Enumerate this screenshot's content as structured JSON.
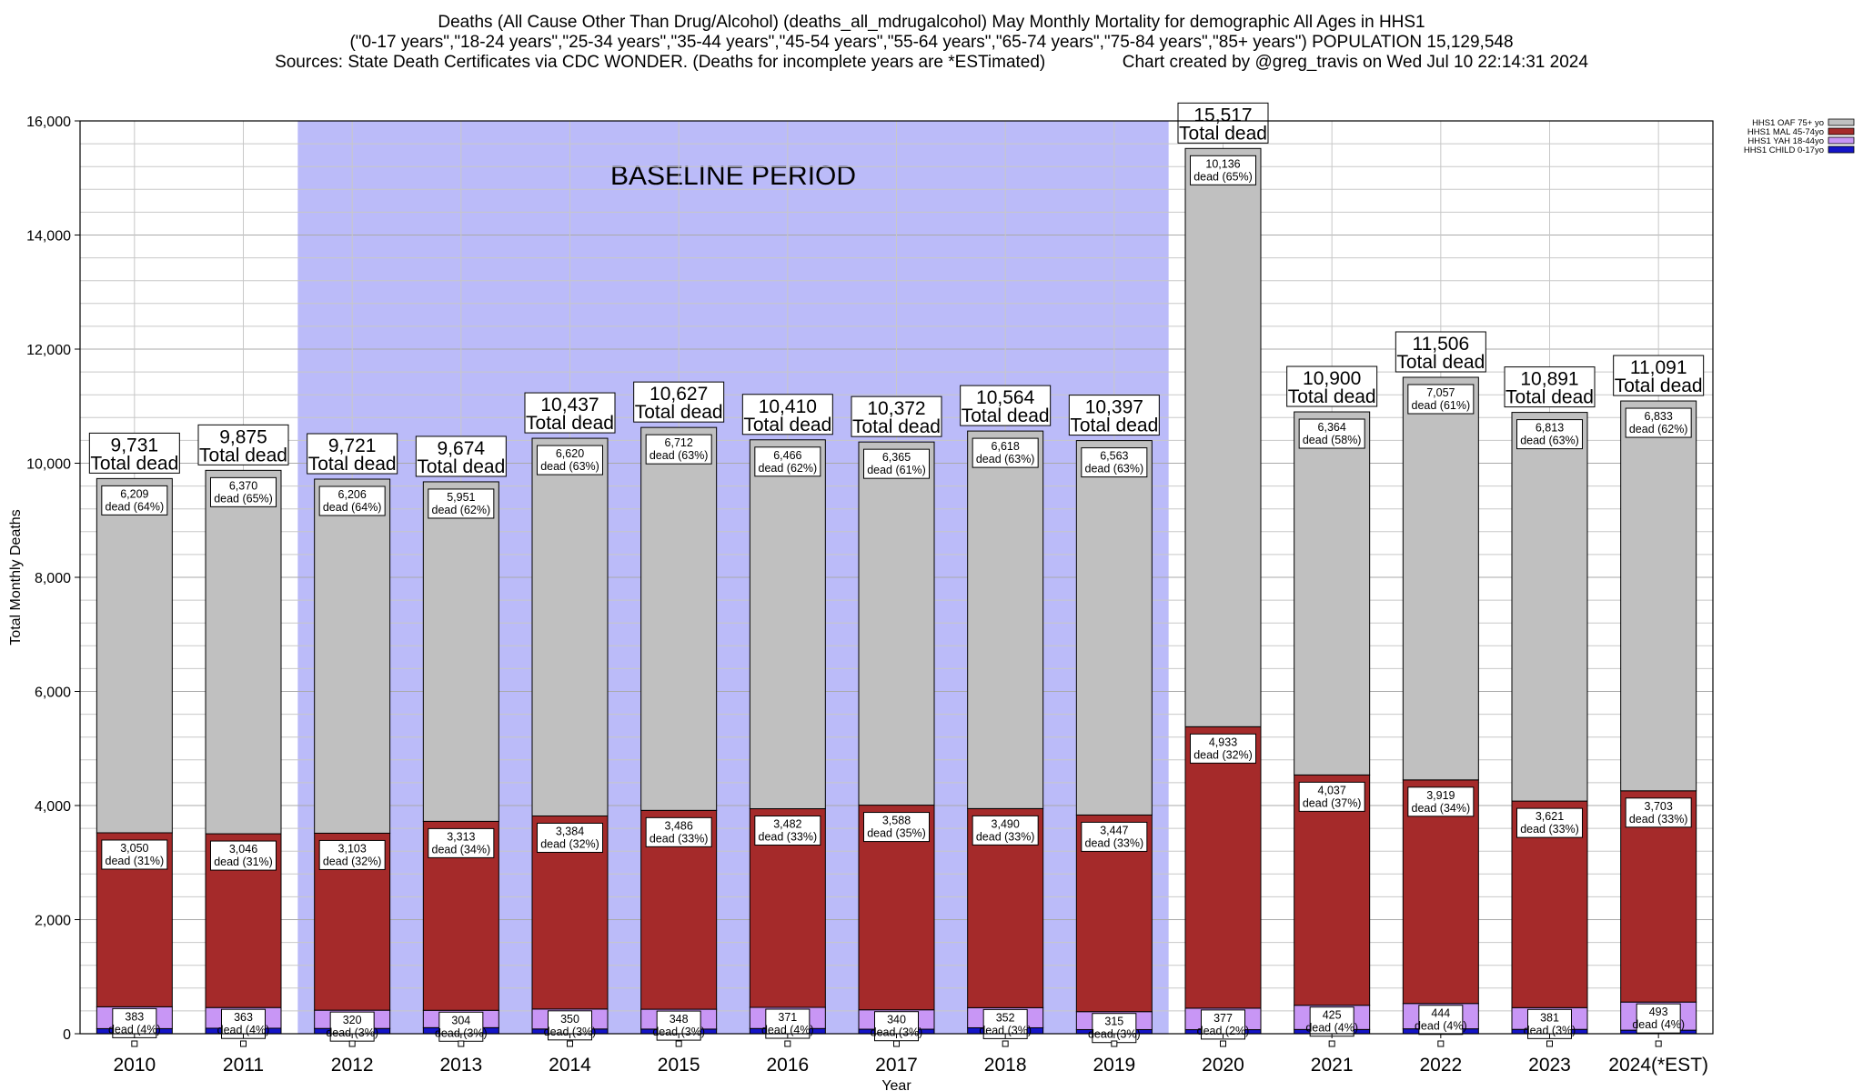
{
  "header": {
    "line1": "Deaths (All Cause Other Than Drug/Alcohol) (deaths_all_mdrugalcohol) May Monthly Mortality for demographic All Ages in HHS1",
    "line2": "(\"0-17 years\",\"18-24 years\",\"25-34 years\",\"35-44 years\",\"45-54 years\",\"55-64 years\",\"65-74 years\",\"75-84 years\",\"85+ years\") POPULATION 15,129,548",
    "line3": "Sources: State Death Certificates via CDC WONDER. (Deaths for incomplete years are *ESTimated)                Chart created by @greg_travis on Wed Jul 10 22:14:31 2024"
  },
  "chart_data": {
    "type": "bar",
    "stacked": true,
    "title": "Deaths (All Cause Other Than Drug/Alcohol) (deaths_all_mdrugalcohol) May Monthly Mortality for demographic All Ages in HHS1",
    "xlabel": "Year",
    "ylabel": "Total Monthly Deaths",
    "ylim": [
      0,
      16000
    ],
    "yticks": [
      0,
      2000,
      4000,
      6000,
      8000,
      10000,
      12000,
      14000,
      16000
    ],
    "ytick_labels": [
      "0",
      "2,000",
      "4,000",
      "6,000",
      "8,000",
      "10,000",
      "12,000",
      "14,000",
      "16,000"
    ],
    "grid": true,
    "legend_position": "top-right",
    "categories": [
      "2010",
      "2011",
      "2012",
      "2013",
      "2014",
      "2015",
      "2016",
      "2017",
      "2018",
      "2019",
      "2020",
      "2021",
      "2022",
      "2023",
      "2024(*EST)"
    ],
    "baseline_period": {
      "label": "BASELINE PERIOD",
      "from": "2012",
      "to": "2019",
      "color": "#bbbbf9"
    },
    "total_suffix": "Total dead",
    "totals": [
      9731,
      9875,
      9721,
      9674,
      10437,
      10627,
      10410,
      10372,
      10564,
      10397,
      15517,
      10900,
      11506,
      10891,
      11091
    ],
    "total_labels": [
      "9,731",
      "9,875",
      "9,721",
      "9,674",
      "10,437",
      "10,627",
      "10,410",
      "10,372",
      "10,564",
      "10,397",
      "15,517",
      "10,900",
      "11,506",
      "10,891",
      "11,091"
    ],
    "series": [
      {
        "name": "HHS1 CHILD 0-17yo",
        "color": "#1414c8",
        "values": [
          89,
          96,
          92,
          106,
          83,
          81,
          91,
          79,
          104,
          72,
          71,
          74,
          86,
          76,
          62
        ],
        "labels": [],
        "label_texts": []
      },
      {
        "name": "HHS1 YAH 18-44yo",
        "color": "#c896f5",
        "values": [
          383,
          363,
          320,
          304,
          350,
          348,
          371,
          340,
          352,
          315,
          377,
          425,
          444,
          381,
          493
        ],
        "labels": [
          "383",
          "363",
          "320",
          "304",
          "350",
          "348",
          "371",
          "340",
          "352",
          "315",
          "377",
          "425",
          "444",
          "381",
          "493"
        ],
        "label_texts": [
          "dead (4%)",
          "dead (4%)",
          "dead (3%)",
          "dead (3%)",
          "dead (3%)",
          "dead (3%)",
          "dead (4%)",
          "dead (3%)",
          "dead (3%)",
          "dead (3%)",
          "dead (2%)",
          "dead (4%)",
          "dead (4%)",
          "dead (3%)",
          "dead (4%)"
        ]
      },
      {
        "name": "HHS1 MAL 45-74yo",
        "color": "#a52a2a",
        "values": [
          3050,
          3046,
          3103,
          3313,
          3384,
          3486,
          3482,
          3588,
          3490,
          3447,
          4933,
          4037,
          3919,
          3621,
          3703
        ],
        "labels": [
          "3,050",
          "3,046",
          "3,103",
          "3,313",
          "3,384",
          "3,486",
          "3,482",
          "3,588",
          "3,490",
          "3,447",
          "4,933",
          "4,037",
          "3,919",
          "3,621",
          "3,703"
        ],
        "label_texts": [
          "dead (31%)",
          "dead (31%)",
          "dead (32%)",
          "dead (34%)",
          "dead (32%)",
          "dead (33%)",
          "dead (33%)",
          "dead (35%)",
          "dead (33%)",
          "dead (33%)",
          "dead (32%)",
          "dead (37%)",
          "dead (34%)",
          "dead (33%)",
          "dead (33%)"
        ]
      },
      {
        "name": "HHS1 OAF 75+ yo",
        "color": "#c0c0c0",
        "values": [
          6209,
          6370,
          6206,
          5951,
          6620,
          6712,
          6466,
          6365,
          6618,
          6563,
          10136,
          6364,
          7057,
          6813,
          6833
        ],
        "labels": [
          "6,209",
          "6,370",
          "6,206",
          "5,951",
          "6,620",
          "6,712",
          "6,466",
          "6,365",
          "6,618",
          "6,563",
          "10,136",
          "6,364",
          "7,057",
          "6,813",
          "6,833"
        ],
        "label_texts": [
          "dead (64%)",
          "dead (65%)",
          "dead (64%)",
          "dead (62%)",
          "dead (63%)",
          "dead (63%)",
          "dead (62%)",
          "dead (61%)",
          "dead (63%)",
          "dead (63%)",
          "dead (65%)",
          "dead (58%)",
          "dead (61%)",
          "dead (63%)",
          "dead (62%)"
        ]
      }
    ]
  }
}
